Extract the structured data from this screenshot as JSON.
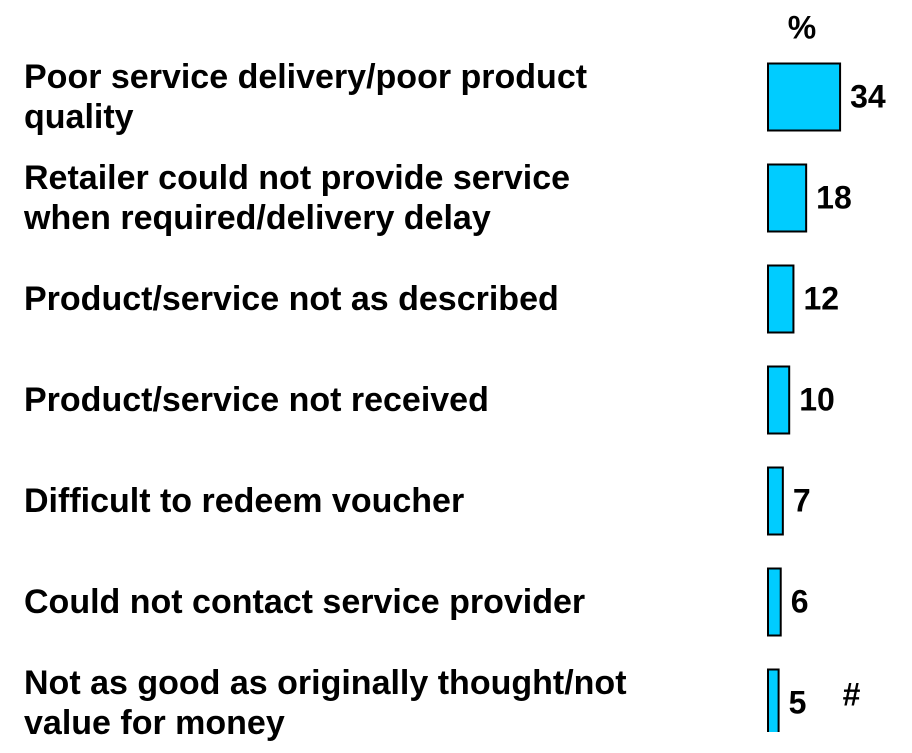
{
  "chart_data": {
    "type": "bar",
    "orientation": "horizontal",
    "unit_label": "%",
    "categories": [
      "Poor service delivery/poor product\nquality",
      "Retailer could not provide service\nwhen required/delivery delay",
      "Product/service not as described",
      "Product/service not received",
      "Difficult to redeem voucher",
      "Could not contact service provider",
      "Not as good as originally thought/not\nvalue for money"
    ],
    "values": [
      34,
      18,
      12,
      10,
      7,
      6,
      5
    ],
    "color": "#00ccff",
    "annotations": [
      "#"
    ]
  }
}
